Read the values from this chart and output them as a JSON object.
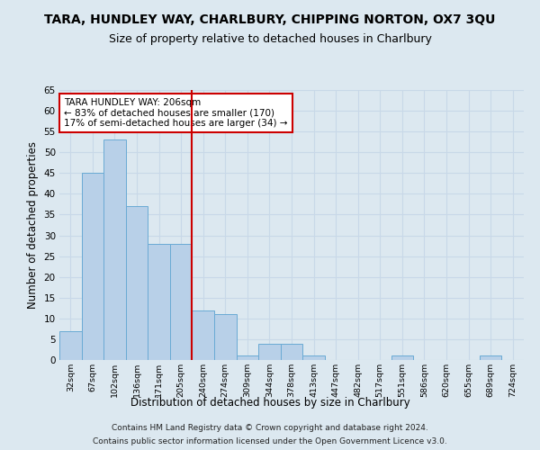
{
  "title": "TARA, HUNDLEY WAY, CHARLBURY, CHIPPING NORTON, OX7 3QU",
  "subtitle": "Size of property relative to detached houses in Charlbury",
  "xlabel": "Distribution of detached houses by size in Charlbury",
  "ylabel": "Number of detached properties",
  "categories": [
    "32sqm",
    "67sqm",
    "102sqm",
    "136sqm",
    "171sqm",
    "205sqm",
    "240sqm",
    "274sqm",
    "309sqm",
    "344sqm",
    "378sqm",
    "413sqm",
    "447sqm",
    "482sqm",
    "517sqm",
    "551sqm",
    "586sqm",
    "620sqm",
    "655sqm",
    "689sqm",
    "724sqm"
  ],
  "values": [
    7,
    45,
    53,
    37,
    28,
    28,
    12,
    11,
    1,
    4,
    4,
    1,
    0,
    0,
    0,
    1,
    0,
    0,
    0,
    1,
    0
  ],
  "bar_color": "#b8d0e8",
  "bar_edge_color": "#6aaad4",
  "grid_color": "#c8d8e8",
  "background_color": "#dce8f0",
  "annotation_text": "TARA HUNDLEY WAY: 206sqm\n← 83% of detached houses are smaller (170)\n17% of semi-detached houses are larger (34) →",
  "annotation_box_color": "#ffffff",
  "annotation_box_edge_color": "#cc0000",
  "vline_color": "#cc0000",
  "ylim": [
    0,
    65
  ],
  "yticks": [
    0,
    5,
    10,
    15,
    20,
    25,
    30,
    35,
    40,
    45,
    50,
    55,
    60,
    65
  ],
  "footer1": "Contains HM Land Registry data © Crown copyright and database right 2024.",
  "footer2": "Contains public sector information licensed under the Open Government Licence v3.0.",
  "bin_width": 1,
  "n_bins": 21,
  "vline_bin_index": 5
}
